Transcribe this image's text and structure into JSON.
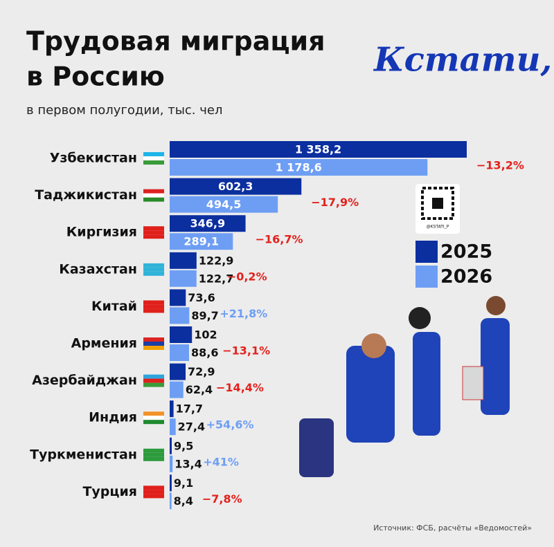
{
  "chart_data": {
    "type": "bar",
    "orientation": "horizontal",
    "title_lines": [
      "Трудовая миграция",
      "в Россию"
    ],
    "subtitle": "в первом полугодии, тыс. чел",
    "logo": "Кстати,",
    "qr_caption": "@KSTATI_P",
    "source": "Источник: ФСБ, расчёты «Ведомостей»",
    "categories": [
      "Узбекистан",
      "Таджикистан",
      "Киргизия",
      "Казахстан",
      "Китай",
      "Армения",
      "Азербайджан",
      "Индия",
      "Туркменистан",
      "Турция"
    ],
    "series": [
      {
        "name": "2025",
        "color": "#0b2f9f",
        "values": [
          1358.2,
          602.3,
          346.9,
          122.9,
          73.6,
          102,
          72.9,
          17.7,
          9.5,
          9.1
        ],
        "value_labels": [
          "1 358,2",
          "602,3",
          "346,9",
          "122,9",
          "73,6",
          "102",
          "72,9",
          "17,7",
          "9,5",
          "9,1"
        ]
      },
      {
        "name": "2026",
        "color": "#6d9ef4",
        "values": [
          1178.6,
          494.5,
          289.1,
          122.7,
          89.7,
          88.6,
          62.4,
          27.4,
          13.4,
          8.4
        ],
        "value_labels": [
          "1 178,6",
          "494,5",
          "289,1",
          "122,7",
          "89,7",
          "88,6",
          "62,4",
          "27,4",
          "13,4",
          "8,4"
        ]
      }
    ],
    "change_labels": [
      "−13,2%",
      "−17,9%",
      "−16,7%",
      "−0,2%",
      "+21,8%",
      "−13,1%",
      "−14,4%",
      "+54,6%",
      "+41%",
      "−7,8%"
    ],
    "change_colors": [
      "#e3211c",
      "#e3211c",
      "#e3211c",
      "#e3211c",
      "#6d9ef4",
      "#e3211c",
      "#e3211c",
      "#6d9ef4",
      "#6d9ef4",
      "#e3211c"
    ]
  }
}
